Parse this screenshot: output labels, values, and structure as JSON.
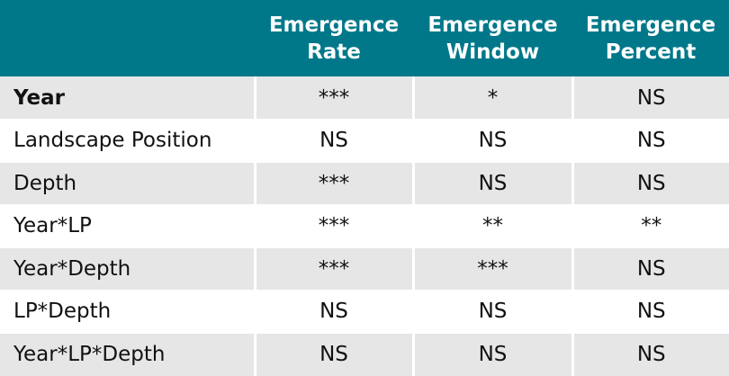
{
  "header": {
    "col1": {
      "line1": "Emergence",
      "line2": "Rate"
    },
    "col2": {
      "line1": "Emergence",
      "line2": "Window"
    },
    "col3": {
      "line1": "Emergence",
      "line2": "Percent"
    }
  },
  "rows": [
    {
      "label": "Year",
      "rate": "***",
      "window": "*",
      "percent": "NS"
    },
    {
      "label": "Landscape Position",
      "rate": "NS",
      "window": "NS",
      "percent": "NS"
    },
    {
      "label": "Depth",
      "rate": "***",
      "window": "NS",
      "percent": "NS"
    },
    {
      "label": "Year*LP",
      "rate": "***",
      "window": "**",
      "percent": "**"
    },
    {
      "label": "Year*Depth",
      "rate": "***",
      "window": "***",
      "percent": "NS"
    },
    {
      "label": "LP*Depth",
      "rate": "NS",
      "window": "NS",
      "percent": "NS"
    },
    {
      "label": "Year*LP*Depth",
      "rate": "NS",
      "window": "NS",
      "percent": "NS"
    }
  ]
}
